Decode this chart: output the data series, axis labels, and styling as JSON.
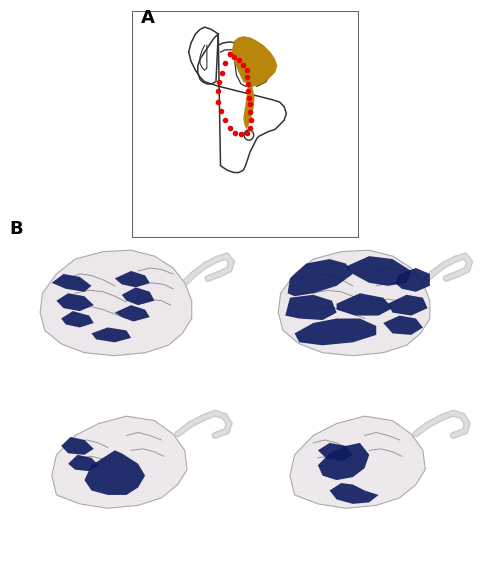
{
  "fig_width": 4.91,
  "fig_height": 5.61,
  "bg_color": "#ffffff",
  "panel_a_label": "A",
  "panel_b_label": "B",
  "label_fontsize": 13,
  "label_fontweight": "bold",
  "box_color": "#666666",
  "hypothalamus_color": "#b8860b",
  "red_dot_color": "#ee0000",
  "outline_color": "#333333",
  "brain_tissue_color": "#e8e4e8",
  "blue_stain_dark": "#0d1b5e",
  "blue_stain_mid": "#1a2a7a",
  "blue_stain_light": "#2a3a8a"
}
